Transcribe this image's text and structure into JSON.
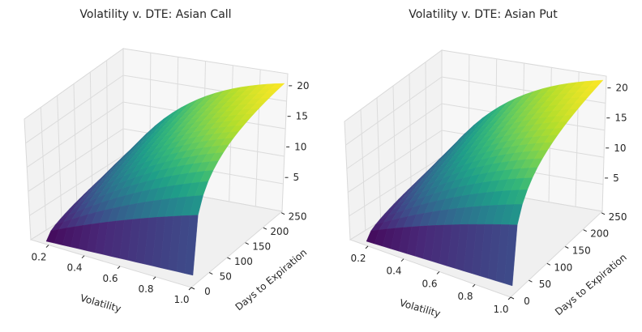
{
  "chart_data": [
    {
      "type": "surface3d",
      "title": "Volatility v. DTE: Asian Call",
      "xlabel": "Volatility",
      "ylabel": "Days to Expiration",
      "zlabel": "",
      "x_ticks": [
        "0.2",
        "0.4",
        "0.6",
        "0.8",
        "1.0"
      ],
      "y_ticks": [
        "0",
        "50",
        "100",
        "150",
        "200",
        "250"
      ],
      "z_ticks": [
        "5",
        "10",
        "15",
        "20"
      ],
      "xlim": [
        0.1,
        1.0
      ],
      "ylim": [
        0,
        252
      ],
      "zlim": [
        0,
        22.5
      ],
      "z_at_corners": {
        "low_vol_low_dte": 0.0,
        "high_vol_low_dte": 0.0,
        "low_vol_high_dte": 0.6,
        "high_vol_high_dte": 22.5
      },
      "colormap": "viridis"
    },
    {
      "type": "surface3d",
      "title": "Volatility v. DTE: Asian Put",
      "xlabel": "Volatility",
      "ylabel": "Days to Expiration",
      "zlabel": "",
      "x_ticks": [
        "0.2",
        "0.4",
        "0.6",
        "0.8",
        "1.0"
      ],
      "y_ticks": [
        "0",
        "50",
        "100",
        "150",
        "200",
        "250"
      ],
      "z_ticks": [
        "5",
        "10",
        "15",
        "20"
      ],
      "xlim": [
        0.1,
        1.0
      ],
      "ylim": [
        0,
        252
      ],
      "zlim": [
        0,
        21
      ],
      "z_at_corners": {
        "low_vol_low_dte": 0.0,
        "high_vol_low_dte": 0.0,
        "low_vol_high_dte": 0.3,
        "high_vol_high_dte": 21.0
      },
      "colormap": "viridis"
    }
  ]
}
